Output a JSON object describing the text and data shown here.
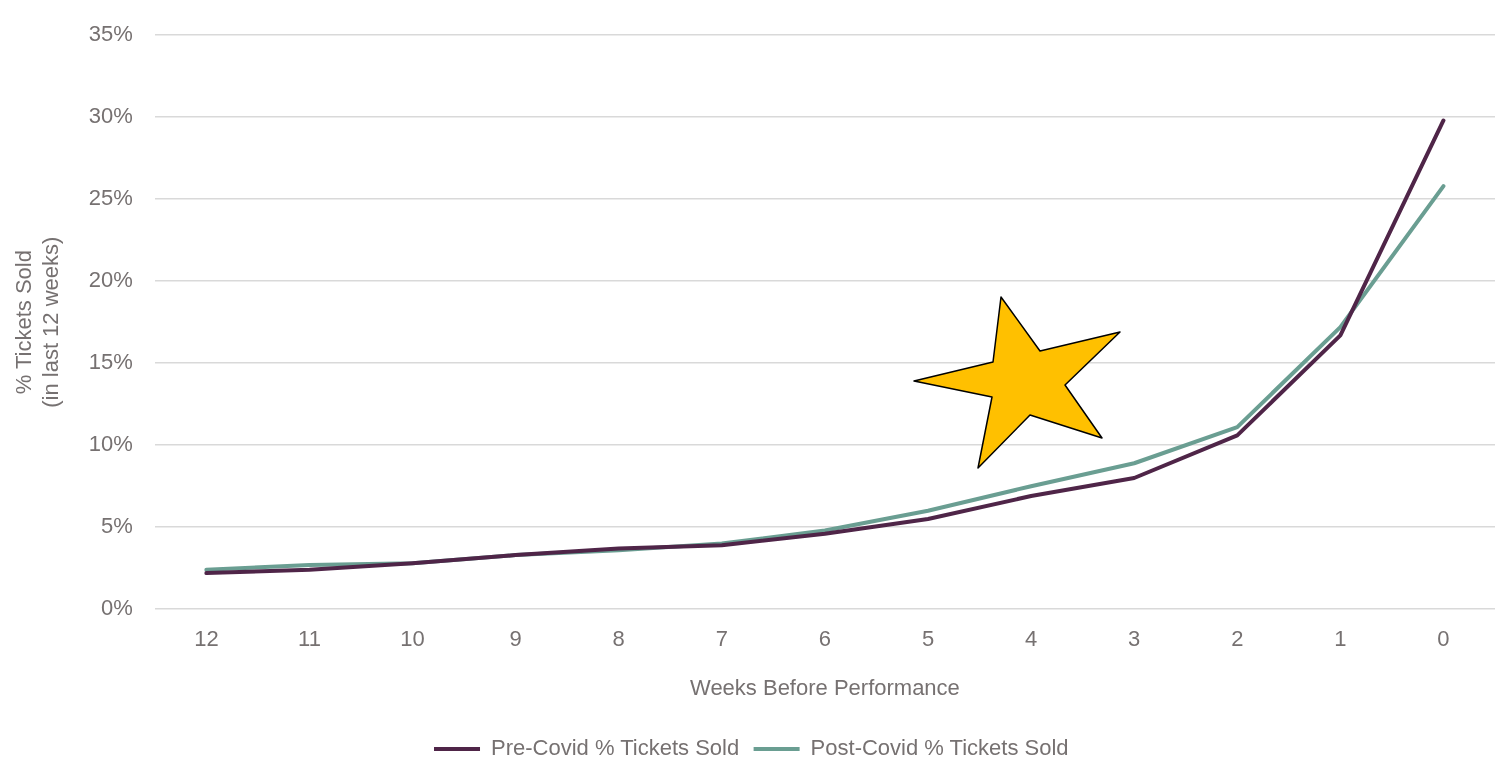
{
  "chart_data": {
    "type": "line",
    "xlabel": "Weeks Before Performance",
    "ylabel": "% Tickets Sold\n(in last 12 weeks)",
    "categories": [
      "12",
      "11",
      "10",
      "9",
      "8",
      "7",
      "6",
      "5",
      "4",
      "3",
      "2",
      "1",
      "0"
    ],
    "series": [
      {
        "name": "Pre-Covid % Tickets Sold",
        "color": "#4f2548",
        "values": [
          2.2,
          2.4,
          2.8,
          3.3,
          3.7,
          3.9,
          4.6,
          5.5,
          6.9,
          8.0,
          10.6,
          16.7,
          29.8
        ]
      },
      {
        "name": "Post-Covid % Tickets Sold",
        "color": "#6a9e92",
        "values": [
          2.4,
          2.7,
          2.8,
          3.3,
          3.6,
          4.0,
          4.8,
          6.0,
          7.5,
          8.9,
          11.1,
          17.2,
          25.8
        ]
      }
    ],
    "ylim": [
      0,
      35
    ],
    "yticks": [
      {
        "value": 0,
        "label": "0%"
      },
      {
        "value": 5,
        "label": "5%"
      },
      {
        "value": 10,
        "label": "10%"
      },
      {
        "value": 15,
        "label": "15%"
      },
      {
        "value": 20,
        "label": "20%"
      },
      {
        "value": 25,
        "label": "25%"
      },
      {
        "value": 30,
        "label": "30%"
      },
      {
        "value": 35,
        "label": "35%"
      }
    ],
    "grid": "y",
    "legend": "bottom",
    "marker": "none",
    "line_style": "solid"
  }
}
